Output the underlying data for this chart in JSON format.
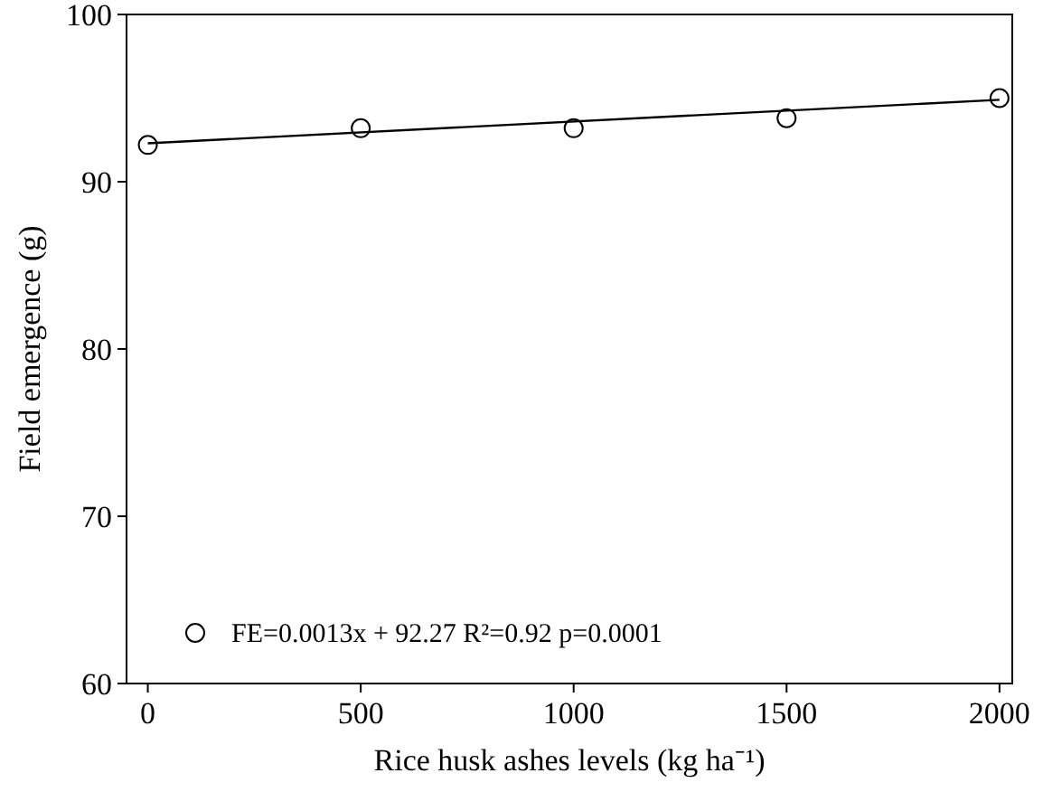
{
  "chart_data": {
    "type": "scatter",
    "xlabel": "Rice husk ashes levels (kg ha⁻¹)",
    "ylabel": "Field emergence (g)",
    "xlim": [
      -50,
      2030
    ],
    "xticks": [
      0,
      500,
      1000,
      1500,
      2000
    ],
    "ylim": [
      60,
      100
    ],
    "yticks": [
      60,
      70,
      80,
      90,
      100
    ],
    "grid": false,
    "legend": "bottom left",
    "series": [
      {
        "name": "FE=0.0013x + 92.27  R²=0.92 p=0.0001",
        "marker": "circle",
        "color": "#000000",
        "x": [
          0,
          500,
          1000,
          1500,
          2000
        ],
        "values": [
          92.2,
          93.2,
          93.2,
          93.8,
          95.0
        ]
      },
      {
        "type": "line",
        "color": "#000000",
        "line_style": "solid",
        "x": [
          0,
          2000
        ],
        "values": [
          92.3,
          94.9
        ]
      }
    ]
  }
}
